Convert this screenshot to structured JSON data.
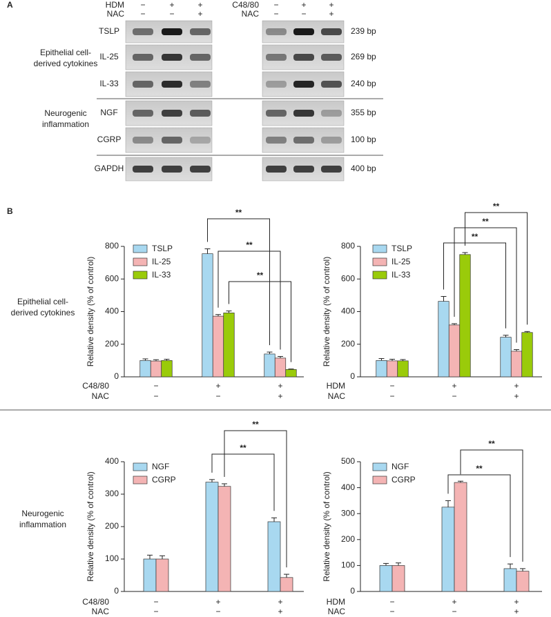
{
  "panel_a": {
    "label": "A",
    "left_conditions": [
      {
        "name": "HDM",
        "signs": [
          "−",
          "+",
          "+"
        ]
      },
      {
        "name": "NAC",
        "signs": [
          "−",
          "−",
          "+"
        ]
      }
    ],
    "right_conditions": [
      {
        "name": "C48/80",
        "signs": [
          "−",
          "+",
          "+"
        ]
      },
      {
        "name": "NAC",
        "signs": [
          "−",
          "−",
          "+"
        ]
      }
    ],
    "groups": [
      [
        "Epithelial cell-",
        "derived cytokines"
      ],
      [
        "Neurogenic",
        "inflammation"
      ]
    ],
    "genes": [
      {
        "name": "TSLP",
        "size": "239 bp"
      },
      {
        "name": "IL-25",
        "size": "269 bp"
      },
      {
        "name": "IL-33",
        "size": "240 bp"
      },
      {
        "name": "NGF",
        "size": "355 bp"
      },
      {
        "name": "CGRP",
        "size": "100 bp"
      },
      {
        "name": "GAPDH",
        "size": "400 bp"
      }
    ]
  },
  "panel_b": {
    "label": "B",
    "row_labels": [
      [
        "Epithelial cell-",
        "derived cytokines"
      ],
      [
        "Neurogenic",
        "inflammation"
      ]
    ]
  },
  "chart_data": [
    {
      "type": "bar",
      "ylabel": "Relative density (% of control)",
      "ylim": [
        0,
        800
      ],
      "yticks": [
        0,
        200,
        400,
        600,
        800
      ],
      "conditions": [
        {
          "name": "C48/80",
          "signs": [
            "−",
            "+",
            "+"
          ]
        },
        {
          "name": "NAC",
          "signs": [
            "−",
            "−",
            "+"
          ]
        }
      ],
      "series": [
        {
          "name": "TSLP",
          "color": "#a8d8f0",
          "values": [
            100,
            755,
            140
          ],
          "errors": [
            10,
            30,
            12
          ]
        },
        {
          "name": "IL-25",
          "color": "#f4b4b4",
          "values": [
            97,
            372,
            115
          ],
          "errors": [
            8,
            10,
            10
          ]
        },
        {
          "name": "IL-33",
          "color": "#9acb0a",
          "values": [
            100,
            392,
            45
          ],
          "errors": [
            8,
            12,
            3
          ]
        }
      ],
      "annotations": [
        "**",
        "**",
        "**"
      ],
      "legend": "upper left"
    },
    {
      "type": "bar",
      "ylabel": "Relative density (% of control)",
      "ylim": [
        0,
        800
      ],
      "yticks": [
        0,
        200,
        400,
        600,
        800
      ],
      "conditions": [
        {
          "name": "HDM",
          "signs": [
            "−",
            "+",
            "+"
          ]
        },
        {
          "name": "NAC",
          "signs": [
            "−",
            "−",
            "+"
          ]
        }
      ],
      "series": [
        {
          "name": "TSLP",
          "color": "#a8d8f0",
          "values": [
            100,
            463,
            243
          ],
          "errors": [
            12,
            30,
            12
          ]
        },
        {
          "name": "IL-25",
          "color": "#f4b4b4",
          "values": [
            98,
            318,
            157
          ],
          "errors": [
            10,
            8,
            10
          ]
        },
        {
          "name": "IL-33",
          "color": "#9acb0a",
          "values": [
            98,
            750,
            272
          ],
          "errors": [
            8,
            12,
            6
          ]
        }
      ],
      "annotations": [
        "**",
        "**",
        "**"
      ],
      "legend": "upper left"
    },
    {
      "type": "bar",
      "ylabel": "Relative density (% of control)",
      "ylim": [
        0,
        400
      ],
      "yticks": [
        0,
        100,
        200,
        300,
        400
      ],
      "conditions": [
        {
          "name": "C48/80",
          "signs": [
            "−",
            "+",
            "+"
          ]
        },
        {
          "name": "NAC",
          "signs": [
            "−",
            "−",
            "+"
          ]
        }
      ],
      "series": [
        {
          "name": "NGF",
          "color": "#a8d8f0",
          "values": [
            100,
            337,
            215
          ],
          "errors": [
            12,
            8,
            12
          ]
        },
        {
          "name": "CGRP",
          "color": "#f4b4b4",
          "values": [
            100,
            324,
            43
          ],
          "errors": [
            10,
            8,
            10
          ]
        }
      ],
      "annotations": [
        "**",
        "**"
      ],
      "legend": "upper left"
    },
    {
      "type": "bar",
      "ylabel": "Relative density (% of control)",
      "ylim": [
        0,
        500
      ],
      "yticks": [
        0,
        100,
        200,
        300,
        400,
        500
      ],
      "conditions": [
        {
          "name": "HDM",
          "signs": [
            "−",
            "+",
            "+"
          ]
        },
        {
          "name": "NAC",
          "signs": [
            "−",
            "−",
            "+"
          ]
        }
      ],
      "series": [
        {
          "name": "NGF",
          "color": "#a8d8f0",
          "values": [
            100,
            325,
            88
          ],
          "errors": [
            8,
            25,
            18
          ]
        },
        {
          "name": "CGRP",
          "color": "#f4b4b4",
          "values": [
            100,
            420,
            78
          ],
          "errors": [
            10,
            5,
            10
          ]
        }
      ],
      "annotations": [
        "**",
        "**"
      ],
      "legend": "upper left"
    }
  ]
}
